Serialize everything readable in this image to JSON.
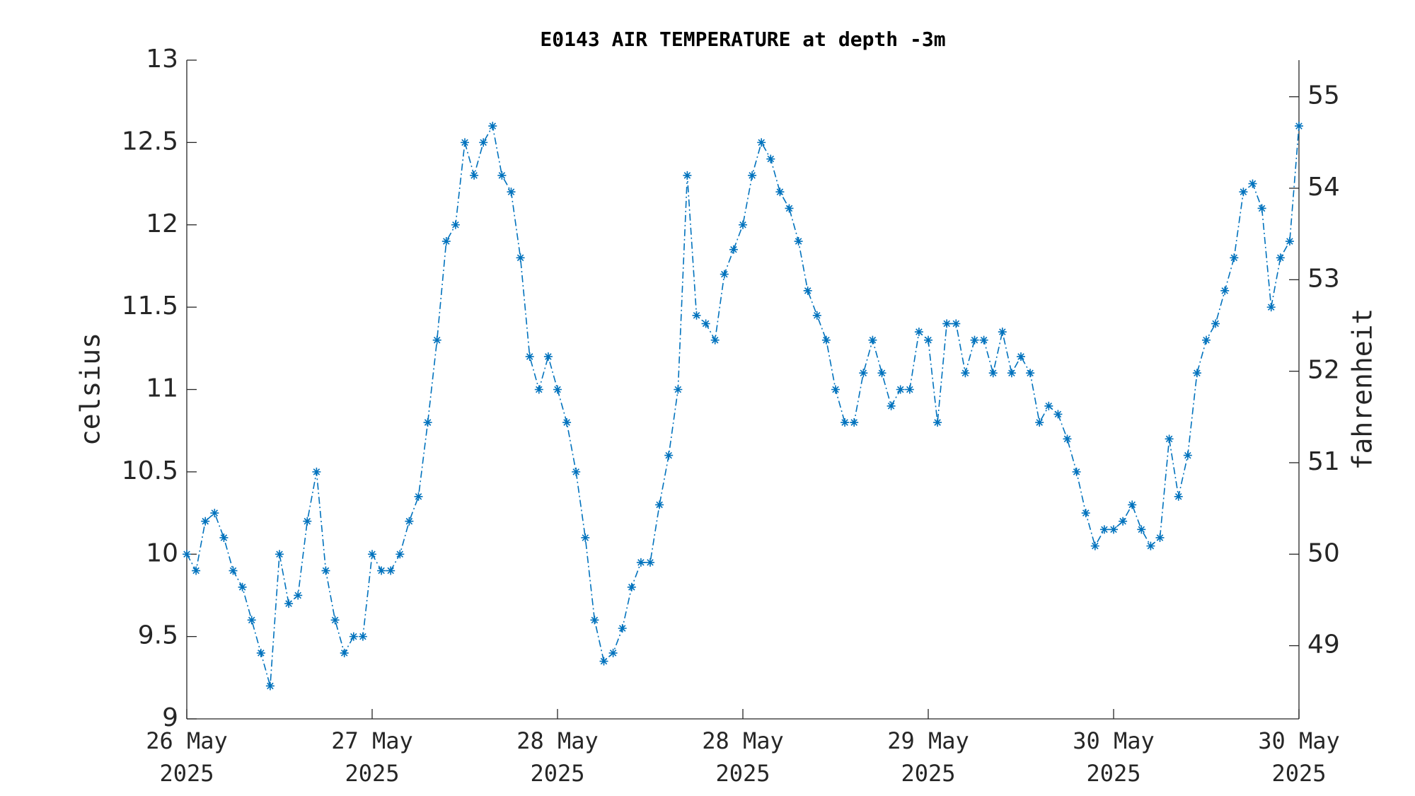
{
  "chart_data": {
    "type": "line",
    "title": "E0143 AIR TEMPERATURE at depth -3m",
    "ylabel": "celsius",
    "y2label": "fahrenheit",
    "x": [
      0,
      0.05,
      0.1,
      0.15,
      0.2,
      0.25,
      0.3,
      0.35,
      0.4,
      0.45,
      0.5,
      0.55,
      0.6,
      0.65,
      0.7,
      0.75,
      0.8,
      0.85,
      0.9,
      0.95,
      1,
      1.05,
      1.1,
      1.15,
      1.2,
      1.25,
      1.3,
      1.35,
      1.4,
      1.45,
      1.5,
      1.55,
      1.6,
      1.65,
      1.7,
      1.75,
      1.8,
      1.85,
      1.9,
      1.95,
      2,
      2.05,
      2.1,
      2.15,
      2.2,
      2.25,
      2.3,
      2.35,
      2.4,
      2.45,
      2.5,
      2.55,
      2.6,
      2.65,
      2.7,
      2.75,
      2.8,
      2.85,
      2.9,
      2.95,
      3,
      3.05,
      3.1,
      3.15,
      3.2,
      3.25,
      3.3,
      3.35,
      3.4,
      3.45,
      3.5,
      3.55,
      3.6,
      3.65,
      3.7,
      3.75,
      3.8,
      3.85,
      3.9,
      3.95,
      4,
      4.05,
      4.1,
      4.15,
      4.2,
      4.25,
      4.3,
      4.35,
      4.4,
      4.45,
      4.5,
      4.55,
      4.6,
      4.65,
      4.7,
      4.75,
      4.8,
      4.85,
      4.9,
      4.95,
      5,
      5.05,
      5.1,
      5.15,
      5.2,
      5.25,
      5.3,
      5.35,
      5.4,
      5.45,
      5.5,
      5.55,
      5.6,
      5.65,
      5.7,
      5.75,
      5.8,
      5.85,
      5.9,
      5.95,
      6
    ],
    "series": [
      {
        "name": "celsius",
        "color": "#0072bd",
        "values": [
          10.0,
          9.9,
          10.2,
          10.25,
          10.1,
          9.9,
          9.8,
          9.6,
          9.4,
          9.2,
          10.0,
          9.7,
          9.75,
          10.2,
          10.5,
          9.9,
          9.6,
          9.4,
          9.5,
          9.5,
          10.0,
          9.9,
          9.9,
          10.0,
          10.2,
          10.35,
          10.8,
          11.3,
          11.9,
          12.0,
          12.5,
          12.3,
          12.5,
          12.6,
          12.3,
          12.2,
          11.8,
          11.2,
          11.0,
          11.2,
          11.0,
          10.8,
          10.5,
          10.1,
          9.6,
          9.35,
          9.4,
          9.55,
          9.8,
          9.95,
          9.95,
          10.3,
          10.6,
          11.0,
          12.3,
          11.45,
          11.4,
          11.3,
          11.7,
          11.85,
          12.0,
          12.3,
          12.5,
          12.4,
          12.2,
          12.1,
          11.9,
          11.6,
          11.45,
          11.3,
          11.0,
          10.8,
          10.8,
          11.1,
          11.3,
          11.1,
          10.9,
          11.0,
          11.0,
          11.35,
          11.3,
          10.8,
          11.4,
          11.4,
          11.1,
          11.3,
          11.3,
          11.1,
          11.35,
          11.1,
          11.2,
          11.1,
          10.8,
          10.9,
          10.85,
          10.7,
          10.5,
          10.25,
          10.05,
          10.15,
          10.15,
          10.2,
          10.3,
          10.15,
          10.05,
          10.1,
          10.7,
          10.35,
          10.6,
          11.1,
          11.3,
          11.4,
          11.6,
          11.8,
          12.2,
          12.25,
          12.1,
          11.5,
          11.8,
          11.9,
          12.6
        ]
      }
    ],
    "xlim": [
      0,
      6
    ],
    "xticks": [
      {
        "value": 0,
        "label": "26 May\n2025"
      },
      {
        "value": 1,
        "label": "27 May\n2025"
      },
      {
        "value": 2,
        "label": "28 May\n2025"
      },
      {
        "value": 3,
        "label": "28 May\n2025"
      },
      {
        "value": 4,
        "label": "29 May\n2025"
      },
      {
        "value": 5,
        "label": "30 May\n2025"
      },
      {
        "value": 6,
        "label": "30 May\n2025"
      }
    ],
    "ylim": [
      9,
      13
    ],
    "yticks": [
      9,
      9.5,
      10,
      10.5,
      11,
      11.5,
      12,
      12.5,
      13
    ],
    "y2lim": [
      48.2,
      55.4
    ],
    "y2ticks": [
      49,
      50,
      51,
      52,
      53,
      54,
      55
    ],
    "grid": false
  }
}
